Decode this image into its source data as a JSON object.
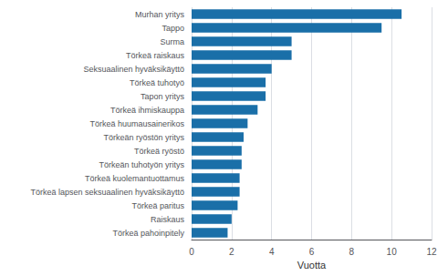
{
  "chart_data": {
    "type": "bar",
    "orientation": "horizontal",
    "categories": [
      "Törkeä pahoinpitely",
      "Raiskaus",
      "Törkeä paritus",
      "Törkeä lapsen seksuaalinen hyväksikäyttö",
      "Törkeä kuolemantuottamus",
      "Törkeän tuhotyön yritys",
      "Törkeä ryöstö",
      "Törkeän ryöstön yritys",
      "Törkeä huumausainerikos",
      "Törkeä ihmiskauppa",
      "Tapon yritys",
      "Törkeä tuhotyö",
      "Seksuaalinen hyväksikäyttö",
      "Törkeä raiskaus",
      "Surma",
      "Tappo",
      "Murhan yritys"
    ],
    "values": [
      1.8,
      2.0,
      2.3,
      2.4,
      2.4,
      2.5,
      2.5,
      2.6,
      2.8,
      3.3,
      3.7,
      3.7,
      4.0,
      5.0,
      5.0,
      9.5,
      10.5
    ],
    "color": "#1a6fa8",
    "xlabel": "Vuotta",
    "xlim": [
      0,
      12
    ],
    "xticks": [
      0,
      2,
      4,
      6,
      8,
      10,
      12
    ],
    "grid": true
  }
}
